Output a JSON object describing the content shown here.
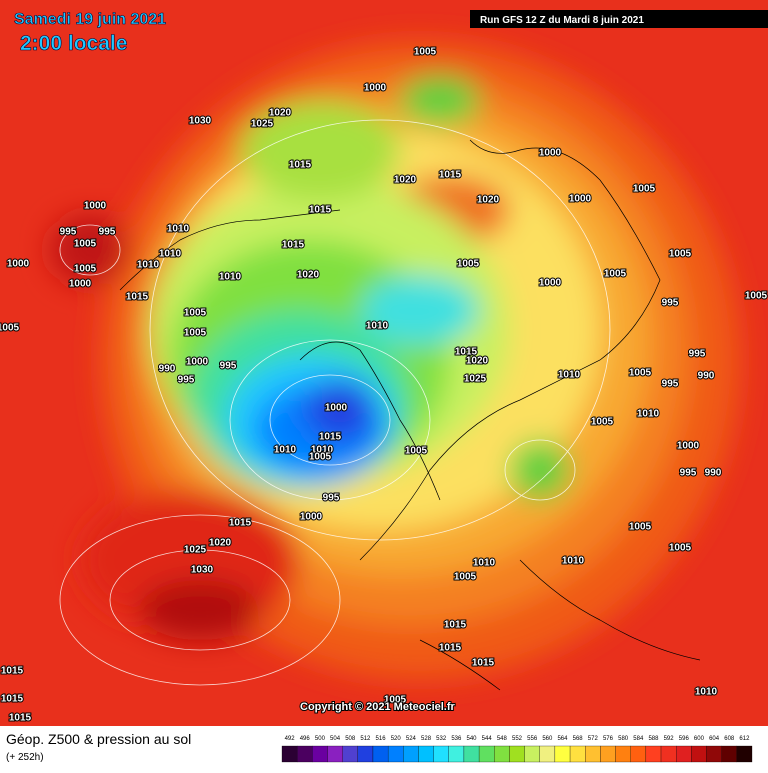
{
  "header": {
    "date": "Samedi 19 juin 2021",
    "time": "2:00 locale",
    "run": "Run GFS 12 Z du Mardi 8 juin 2021"
  },
  "map": {
    "copyright": "Copyright © 2021 Meteociel.fr",
    "isobar_labels": [
      1005,
      1000,
      1020,
      1025,
      1030,
      1015,
      1015,
      1020,
      1015,
      1020,
      1000,
      1000,
      1005,
      1005,
      1000,
      995,
      995,
      1005,
      1005,
      1000,
      1000,
      1010,
      1010,
      1010,
      1015,
      1015,
      1020,
      1010,
      1005,
      1005,
      1000,
      995,
      990,
      995,
      1010,
      1005,
      1000,
      1005,
      995,
      1005,
      1005,
      1015,
      1020,
      1025,
      1010,
      1005,
      995,
      995,
      990,
      1000,
      1015,
      1010,
      1010,
      1005,
      1005,
      1005,
      1010,
      1000,
      995,
      990,
      995,
      1000,
      1015,
      1005,
      1005,
      1020,
      1025,
      1030,
      1010,
      1010,
      1005,
      1015,
      1015,
      1015,
      1015,
      1015,
      1015,
      1010,
      1005
    ]
  },
  "footer": {
    "title": "Géop. Z500 & pression au sol",
    "lead": "(+ 252h)"
  },
  "scale": {
    "values": [
      492,
      496,
      500,
      504,
      508,
      512,
      516,
      520,
      524,
      528,
      532,
      536,
      540,
      544,
      548,
      552,
      556,
      560,
      564,
      568,
      572,
      576,
      580,
      584,
      588,
      592,
      596,
      600,
      604,
      608,
      612
    ],
    "colors": [
      "#2b0033",
      "#4b0060",
      "#6a00a0",
      "#8a20c0",
      "#5040d0",
      "#2040e0",
      "#0060f0",
      "#0080ff",
      "#00a0ff",
      "#00c0ff",
      "#20e0ff",
      "#40f0e0",
      "#40e0a0",
      "#60e060",
      "#80e040",
      "#a0e020",
      "#c8f060",
      "#f0f080",
      "#ffff40",
      "#ffe040",
      "#ffc030",
      "#ffa020",
      "#ff8010",
      "#ff6010",
      "#ff4020",
      "#f03020",
      "#e02020",
      "#c01010",
      "#900808",
      "#600000",
      "#200000"
    ]
  }
}
